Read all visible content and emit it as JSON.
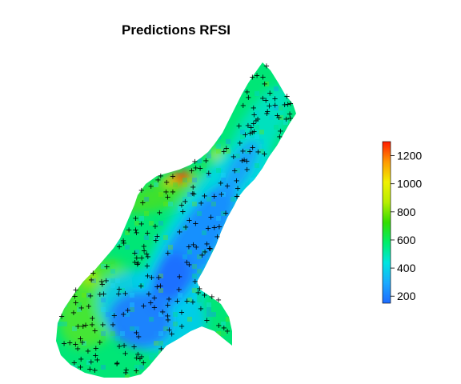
{
  "title": "Predictions RFSI",
  "legend": {
    "min": 150,
    "max": 1300,
    "ticks": [
      200,
      400,
      600,
      800,
      1000,
      1200
    ],
    "stops": [
      "#1e6bff",
      "#1aa9ff",
      "#00e5e0",
      "#00ee6a",
      "#33dd00",
      "#b8ee00",
      "#f0f000",
      "#ff9900",
      "#ff1a00"
    ]
  },
  "colors": {
    "low": "#1e6bff",
    "mid": "#00e676",
    "high": "#ff2000",
    "marker": "#000000"
  },
  "marker_symbol": "+"
}
